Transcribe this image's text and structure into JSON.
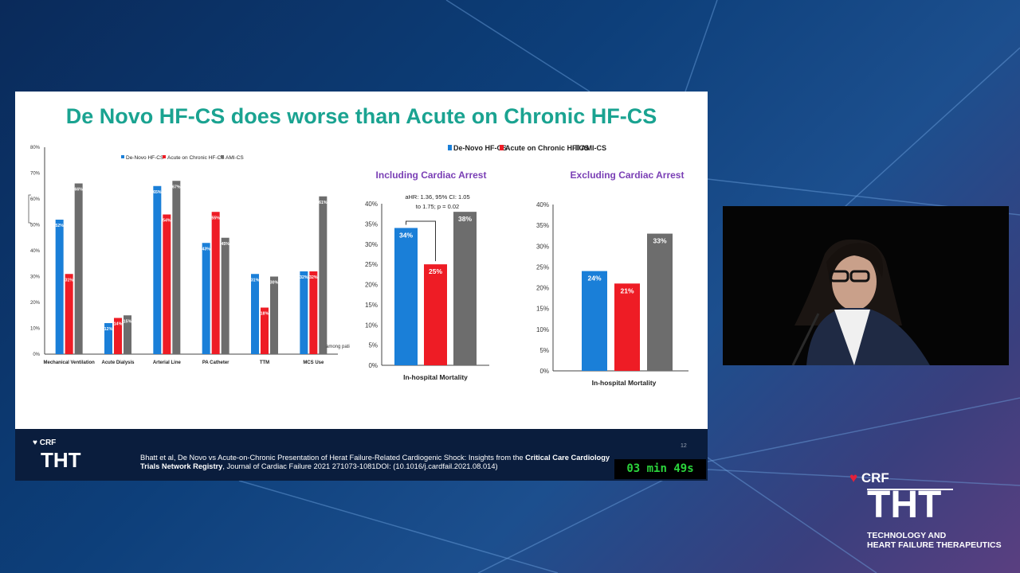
{
  "slide": {
    "title": "De Novo HF-CS does worse than Acute on Chronic HF-CS",
    "footer_logo_crf": "CRF",
    "footer_logo_tht": "THT",
    "citation_part1": "Bhatt et al, De Novo vs Acute-on-Chronic Presentation of Herat Failure-Related Cardiogenic Shock: Insights from the ",
    "citation_bold1": "Critical Care Cardiology Trials Network Registry",
    "citation_part2": ", Journal of Cardiac Failure 2021 271073-1081DOI: (10.1016/j.cardfail.2021.08.014)",
    "slide_number": "12",
    "timer": "03 min 49s",
    "cutoff_label": "among patien"
  },
  "brand": {
    "crf": "CRF",
    "tht": "THT",
    "subtitle_line1": "TECHNOLOGY AND",
    "subtitle_line2": "HEART FAILURE THERAPEUTICS"
  },
  "colors": {
    "denovo": "#1a7fd8",
    "acute_on_chronic": "#ee1c25",
    "ami": "#6d6d6d",
    "title": "#1aa391",
    "panel_title": "#7a3fb5"
  },
  "chart_data": [
    {
      "type": "bar",
      "title": "",
      "categories": [
        "Mechanical Ventilation",
        "Acute Dialysis",
        "Arterial Line",
        "PA Catheter",
        "TTM",
        "MCS Use"
      ],
      "series": [
        {
          "name": "De-Novo HF-CS",
          "values": [
            52,
            12,
            65,
            43,
            31,
            32
          ],
          "labels": [
            "52%",
            "12%",
            "65%",
            "43%",
            "31%",
            "32%"
          ]
        },
        {
          "name": "Acute on Chronic HF-CS",
          "values": [
            31,
            14,
            54,
            55,
            18,
            32
          ],
          "labels": [
            "31%",
            "14%",
            "54%",
            "55%",
            "18%",
            "32%"
          ]
        },
        {
          "name": "AMI-CS",
          "values": [
            66,
            15,
            67,
            45,
            30,
            61
          ],
          "labels": [
            "66%",
            "15%",
            "67%",
            "45%",
            "30%",
            "61%"
          ]
        }
      ],
      "yticks": [
        "0%",
        "10%",
        "20%",
        "30%",
        "40%",
        "50%",
        "60%",
        "70%",
        "80%"
      ],
      "ylim": [
        0,
        80
      ],
      "legend_position": "top"
    },
    {
      "type": "bar",
      "title": "Including Cardiac Arrest",
      "categories": [
        "In-hospital Mortality"
      ],
      "series": [
        {
          "name": "De-Novo HF-CS",
          "values": [
            34
          ],
          "labels": [
            "34%"
          ]
        },
        {
          "name": "Acute on Chronic HF-CS",
          "values": [
            25
          ],
          "labels": [
            "25%"
          ]
        },
        {
          "name": "AMI-CS",
          "values": [
            38
          ],
          "labels": [
            "38%"
          ]
        }
      ],
      "annotation_line1": "aHR: 1.36, 95% CI: 1.05",
      "annotation_line2": "to 1.75; p = 0.02",
      "yticks": [
        "0%",
        "5%",
        "10%",
        "15%",
        "20%",
        "25%",
        "30%",
        "35%",
        "40%"
      ],
      "ylim": [
        0,
        40
      ],
      "legend_position": "top"
    },
    {
      "type": "bar",
      "title": "Excluding Cardiac Arrest",
      "categories": [
        "In-hospital Mortality"
      ],
      "series": [
        {
          "name": "De-Novo HF-CS",
          "values": [
            24
          ],
          "labels": [
            "24%"
          ]
        },
        {
          "name": "Acute on Chronic HF-CS",
          "values": [
            21
          ],
          "labels": [
            "21%"
          ]
        },
        {
          "name": "AMI-CS",
          "values": [
            33
          ],
          "labels": [
            "33%"
          ]
        }
      ],
      "yticks": [
        "0%",
        "5%",
        "10%",
        "15%",
        "20%",
        "25%",
        "30%",
        "35%",
        "40%"
      ],
      "ylim": [
        0,
        40
      ]
    }
  ],
  "legend_right": [
    "De-Novo HF-CS",
    "Acute on Chronic HF-CS",
    "AMI-CS"
  ]
}
